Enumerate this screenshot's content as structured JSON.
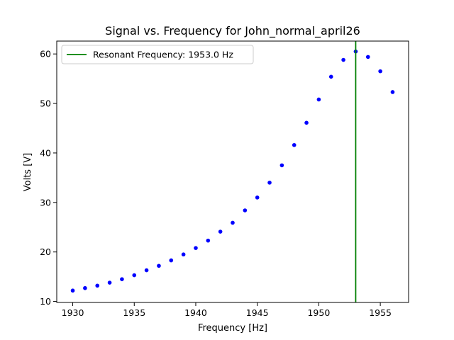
{
  "chart_data": {
    "type": "scatter",
    "title": "Signal vs. Frequency for John_normal_april26",
    "xlabel": "Frequency [Hz]",
    "ylabel": "Volts [V]",
    "xlim": [
      1928.7,
      1957.3
    ],
    "ylim": [
      9.8,
      62.6
    ],
    "x_ticks": [
      1930,
      1935,
      1940,
      1945,
      1950,
      1955
    ],
    "y_ticks": [
      10,
      20,
      30,
      40,
      50,
      60
    ],
    "grid": false,
    "legend_position": "upper left",
    "series": [
      {
        "color": "#0000ff",
        "marker": "dot",
        "x": [
          1930,
          1931,
          1932,
          1933,
          1934,
          1935,
          1936,
          1937,
          1938,
          1939,
          1940,
          1941,
          1942,
          1943,
          1944,
          1945,
          1946,
          1947,
          1948,
          1949,
          1950,
          1951,
          1952,
          1953,
          1954,
          1955,
          1956
        ],
        "y": [
          12.2,
          12.7,
          13.2,
          13.8,
          14.5,
          15.3,
          16.3,
          17.2,
          18.3,
          19.5,
          20.8,
          22.3,
          24.1,
          25.9,
          28.4,
          31.0,
          34.0,
          37.5,
          41.6,
          46.1,
          50.8,
          55.4,
          58.8,
          60.5,
          59.4,
          56.5,
          52.3
        ]
      }
    ],
    "vlines": [
      {
        "name": "Resonant Frequency: 1953.0 Hz",
        "x": 1953.0,
        "color": "#008000"
      }
    ]
  }
}
